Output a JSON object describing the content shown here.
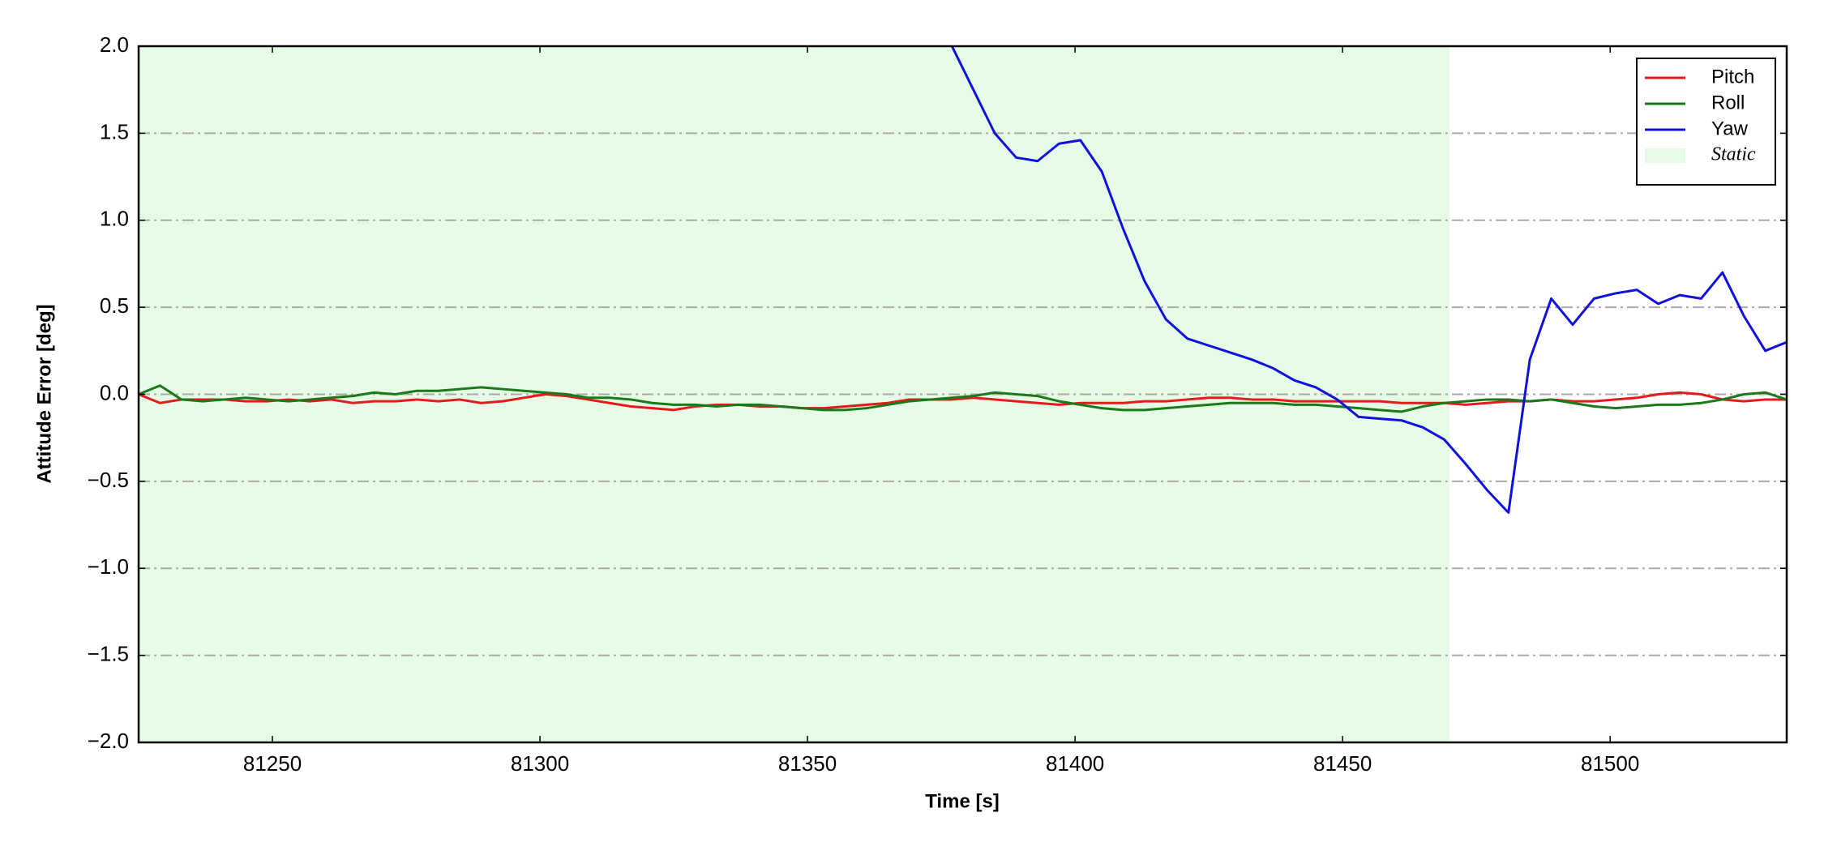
{
  "chart_data": {
    "type": "line",
    "xlabel": "Time [s]",
    "ylabel": "Attitude Error [deg]",
    "x": [
      81225,
      81229,
      81233,
      81237,
      81241,
      81245,
      81249,
      81253,
      81257,
      81261,
      81265,
      81269,
      81273,
      81277,
      81281,
      81285,
      81289,
      81293,
      81297,
      81301,
      81305,
      81309,
      81313,
      81317,
      81321,
      81325,
      81329,
      81333,
      81337,
      81341,
      81345,
      81349,
      81353,
      81357,
      81361,
      81365,
      81369,
      81373,
      81377,
      81381,
      81385,
      81389,
      81393,
      81397,
      81401,
      81405,
      81409,
      81413,
      81417,
      81421,
      81425,
      81429,
      81433,
      81437,
      81441,
      81445,
      81449,
      81453,
      81457,
      81461,
      81465,
      81469,
      81473,
      81477,
      81481,
      81485,
      81489,
      81493,
      81497,
      81501,
      81505,
      81509,
      81513,
      81517,
      81521,
      81525,
      81529,
      81533
    ],
    "series": [
      {
        "name": "Pitch",
        "color": "#e41a1c",
        "values": [
          0,
          -0.05,
          -0.03,
          -0.03,
          -0.03,
          -0.04,
          -0.04,
          -0.03,
          -0.04,
          -0.03,
          -0.05,
          -0.04,
          -0.04,
          -0.03,
          -0.04,
          -0.03,
          -0.05,
          -0.04,
          -0.02,
          0.0,
          -0.01,
          -0.03,
          -0.05,
          -0.07,
          -0.08,
          -0.09,
          -0.07,
          -0.06,
          -0.06,
          -0.07,
          -0.07,
          -0.08,
          -0.08,
          -0.07,
          -0.06,
          -0.05,
          -0.03,
          -0.03,
          -0.03,
          -0.02,
          -0.03,
          -0.04,
          -0.05,
          -0.06,
          -0.05,
          -0.05,
          -0.05,
          -0.04,
          -0.04,
          -0.03,
          -0.02,
          -0.02,
          -0.03,
          -0.03,
          -0.04,
          -0.04,
          -0.04,
          -0.04,
          -0.04,
          -0.05,
          -0.05,
          -0.05,
          -0.06,
          -0.05,
          -0.04,
          -0.04,
          -0.03,
          -0.04,
          -0.04,
          -0.03,
          -0.02,
          0.0,
          0.01,
          0.0,
          -0.03,
          -0.04,
          -0.03,
          -0.03
        ]
      },
      {
        "name": "Roll",
        "color": "#1a7a1a",
        "values": [
          0.0,
          0.05,
          -0.03,
          -0.04,
          -0.03,
          -0.02,
          -0.03,
          -0.04,
          -0.03,
          -0.02,
          -0.01,
          0.01,
          0.0,
          0.02,
          0.02,
          0.03,
          0.04,
          0.03,
          0.02,
          0.01,
          0.0,
          -0.02,
          -0.02,
          -0.03,
          -0.05,
          -0.06,
          -0.06,
          -0.07,
          -0.06,
          -0.06,
          -0.07,
          -0.08,
          -0.09,
          -0.09,
          -0.08,
          -0.06,
          -0.04,
          -0.03,
          -0.02,
          -0.01,
          0.01,
          0.0,
          -0.01,
          -0.04,
          -0.06,
          -0.08,
          -0.09,
          -0.09,
          -0.08,
          -0.07,
          -0.06,
          -0.05,
          -0.05,
          -0.05,
          -0.06,
          -0.06,
          -0.07,
          -0.08,
          -0.09,
          -0.1,
          -0.07,
          -0.05,
          -0.04,
          -0.03,
          -0.03,
          -0.04,
          -0.03,
          -0.05,
          -0.07,
          -0.08,
          -0.07,
          -0.06,
          -0.06,
          -0.05,
          -0.03,
          0.0,
          0.01,
          -0.03
        ]
      },
      {
        "name": "Yaw",
        "color": "#1111dd",
        "values": [
          null,
          null,
          null,
          null,
          null,
          null,
          null,
          null,
          null,
          null,
          null,
          null,
          null,
          null,
          null,
          null,
          null,
          null,
          null,
          null,
          null,
          null,
          null,
          null,
          null,
          null,
          null,
          null,
          null,
          null,
          null,
          null,
          null,
          null,
          null,
          null,
          null,
          null,
          2.0,
          1.75,
          1.5,
          1.36,
          1.34,
          1.44,
          1.46,
          1.28,
          0.95,
          0.65,
          0.43,
          0.32,
          0.28,
          0.24,
          0.2,
          0.15,
          0.08,
          0.04,
          -0.03,
          -0.13,
          -0.14,
          -0.15,
          -0.19,
          -0.26,
          -0.4,
          -0.55,
          -0.68,
          0.2,
          0.55,
          0.4,
          0.55,
          0.58,
          0.6,
          0.52,
          0.57,
          0.55,
          0.7,
          0.45,
          0.25,
          0.3
        ]
      }
    ],
    "shaded_region": {
      "name": "Static",
      "x": [
        81225,
        81470
      ],
      "color": "#e6fce6"
    },
    "xlim": [
      81225,
      81533
    ],
    "xticks": [
      81250,
      81300,
      81350,
      81400,
      81450,
      81500
    ],
    "ylim": [
      -2,
      2
    ],
    "yticks": [
      {
        "value": -2,
        "label": "−2.0"
      },
      {
        "value": -1.5,
        "label": "−1.5"
      },
      {
        "value": -1,
        "label": "−1.0"
      },
      {
        "value": -0.5,
        "label": "−0.5"
      },
      {
        "value": 0,
        "label": "0.0"
      },
      {
        "value": 0.5,
        "label": "0.5"
      },
      {
        "value": 1,
        "label": "1.0"
      },
      {
        "value": 1.5,
        "label": "1.5"
      },
      {
        "value": 2,
        "label": "2.0"
      }
    ],
    "grid": true,
    "legend": "upper right"
  }
}
